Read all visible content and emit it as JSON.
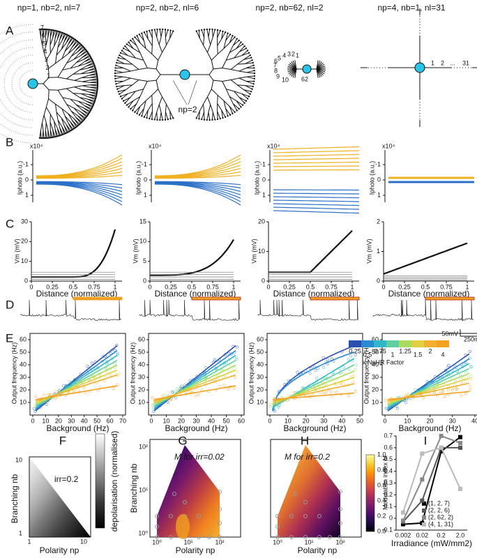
{
  "columns": [
    {
      "title": "np=1, nb=2, nl=7"
    },
    {
      "title": "np=2, nb=2, nl=6"
    },
    {
      "title": "np=2, nb=62, nl=2"
    },
    {
      "title": "np=4, nb=1, nl=31"
    }
  ],
  "panel_labels": [
    "A",
    "B",
    "C",
    "D",
    "E",
    "F",
    "G",
    "H",
    "I"
  ],
  "panel_a": {
    "tree1_labels": [
      "7",
      "6",
      "5",
      "4",
      "3",
      "2",
      "1"
    ],
    "tree2_label": "np=2",
    "tree3_labels": [
      "5",
      "4",
      "3",
      "2",
      "1",
      "6",
      "7",
      "8",
      "9",
      "10",
      "62"
    ],
    "tree4_labels": [
      "1",
      "2",
      "...",
      "31"
    ]
  },
  "panel_b": {
    "multiplier": "x10⁴",
    "ylabel": "Iphoto (a.u.)",
    "yticks": [
      "1",
      "0",
      "-1"
    ]
  },
  "panel_c": {
    "ylabel": "Vm (mV)",
    "xlabel": "Distance (normalized)",
    "xticks": [
      "0",
      "0.25",
      "0.5",
      "0.75",
      "1"
    ],
    "yticks": [
      [
        "0",
        "10",
        "20",
        "30"
      ],
      [
        "0",
        "5",
        "10",
        "15"
      ],
      [
        "0",
        "10",
        "20"
      ],
      [
        "0",
        "1",
        "2"
      ]
    ]
  },
  "panel_d": {
    "scale_v": "50mV",
    "scale_t": "250ms"
  },
  "panel_e": {
    "ylabel": "Output frequency (Hz)",
    "xlabel": "Background (Hz)",
    "yticks": [
      "10",
      "20",
      "30",
      "40",
      "50",
      "60"
    ],
    "xticks": [
      [
        "0",
        "10",
        "20",
        "30",
        "40",
        "50",
        "60",
        "70"
      ],
      [
        "0",
        "10",
        "20",
        "30",
        "40",
        "50",
        "60"
      ],
      [
        "0",
        "10",
        "20",
        "30",
        "40",
        "50"
      ],
      [
        "0",
        "10",
        "20",
        "30",
        "40"
      ]
    ],
    "colorbar": {
      "ticks": [
        "0.25",
        "0.5",
        "0.75",
        "1",
        "1.25",
        "1.5",
        "2",
        "4"
      ],
      "label": "x NpHR Factor"
    }
  },
  "panel_f": {
    "annotation": "irr=0.2",
    "ylabel": "Branching nb",
    "xlabel": "Polarity np",
    "ticks": [
      "1",
      "10"
    ],
    "colorbar_label": "depolarisation (normalised)"
  },
  "panel_g": {
    "annotation": "M for irr=0.02",
    "ylabel": "Branching nb",
    "xlabel": "Polarity np",
    "yticks": [
      "10⁰",
      "10¹",
      "10²"
    ],
    "xticks": [
      "10⁰",
      "10¹",
      "10²"
    ]
  },
  "panel_h": {
    "annotation": "M for irr=0.2",
    "xlabel": "Polarity np",
    "xticks": [
      "10⁰",
      "10¹",
      "10²"
    ],
    "colorbar_ticks": [
      "0.0",
      "0.2",
      "0.4",
      "0.6",
      "0.8",
      "1.0"
    ]
  },
  "chart_data": {
    "type": "line",
    "ylabel": "Modulation index M",
    "xlabel": "Irradiance (mW/mm2)",
    "categories": [
      "0.002",
      "0.02",
      "0.2",
      "2.0"
    ],
    "ylim": [
      -0.1,
      0.7
    ],
    "yticks": [
      -0.1,
      0,
      0.1,
      0.2,
      0.3,
      0.4,
      0.5,
      0.6,
      0.7
    ],
    "series": [
      {
        "name": "(1, 2, 7)",
        "color": "#000000",
        "values": [
          -0.05,
          -0.04,
          0.57,
          0.69
        ]
      },
      {
        "name": "(2, 2, 6)",
        "color": "#555555",
        "values": [
          -0.03,
          0.15,
          0.6,
          0.6
        ]
      },
      {
        "name": "(2, 62, 2)",
        "color": "#888888",
        "values": [
          -0.02,
          0.33,
          0.7,
          0.64
        ]
      },
      {
        "name": "(4, 1, 31)",
        "color": "#bbbbbb",
        "values": [
          0.05,
          0.55,
          0.6,
          0.25
        ]
      }
    ]
  }
}
